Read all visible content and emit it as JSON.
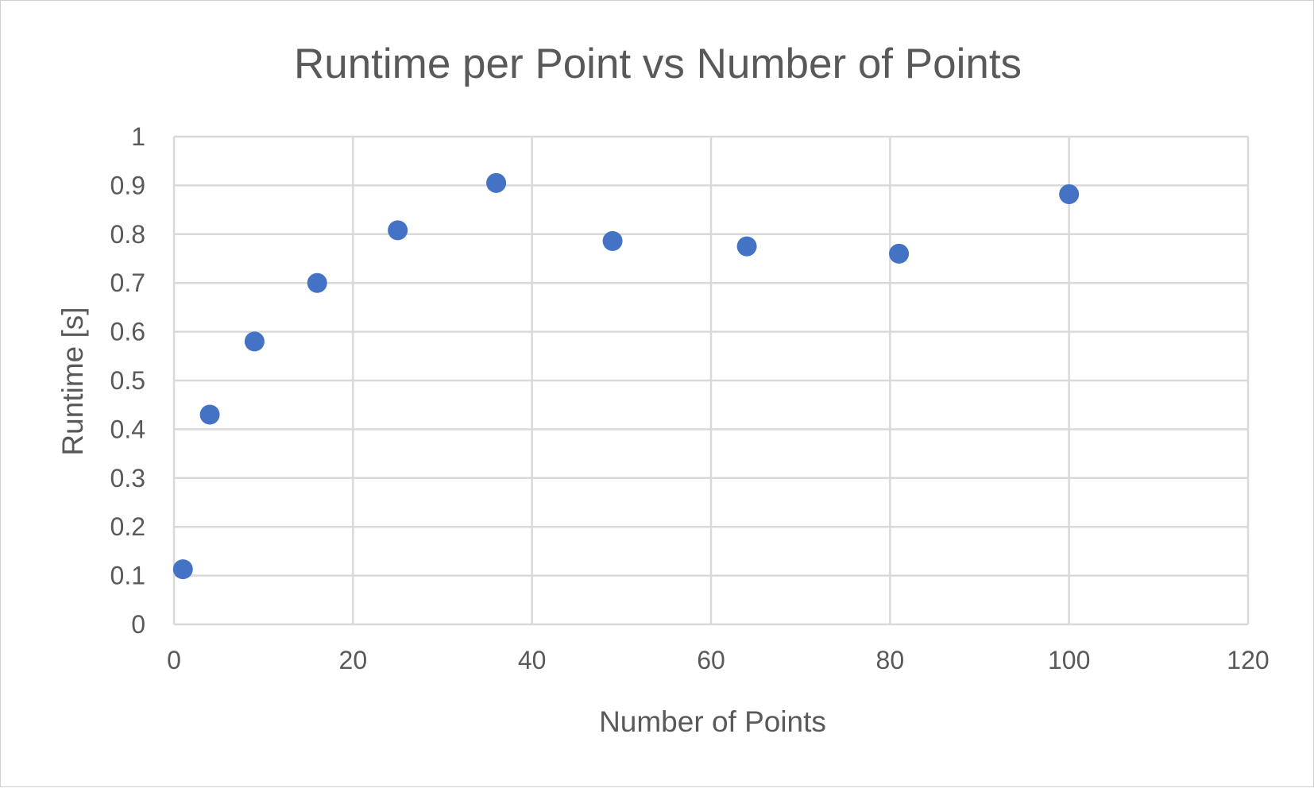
{
  "chart_data": {
    "type": "scatter",
    "title": "Runtime per Point vs Number of Points",
    "xlabel": "Number of Points",
    "ylabel": "Runtime [s]",
    "xlim": [
      0,
      120
    ],
    "ylim": [
      0,
      1
    ],
    "x_ticks": [
      "0",
      "20",
      "40",
      "60",
      "80",
      "100",
      "120"
    ],
    "y_ticks": [
      "0",
      "0.1",
      "0.2",
      "0.3",
      "0.4",
      "0.5",
      "0.6",
      "0.7",
      "0.8",
      "0.9",
      "1"
    ],
    "grid": true,
    "legend": "none",
    "marker_color": "#4472c4",
    "series": [
      {
        "x": [
          1,
          4,
          9,
          16,
          25,
          36,
          49,
          64,
          81,
          100
        ],
        "y": [
          0.113,
          0.43,
          0.58,
          0.7,
          0.808,
          0.905,
          0.786,
          0.775,
          0.76,
          0.882
        ]
      }
    ]
  }
}
